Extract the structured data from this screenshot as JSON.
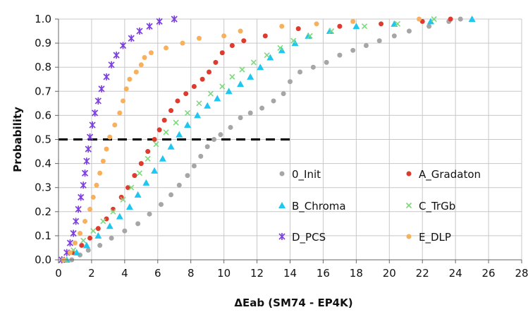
{
  "chart_data": {
    "type": "scatter",
    "title": "",
    "xlabel": "ΔEab (SM74 - EP4K)",
    "ylabel": "Probability",
    "xlim": [
      0,
      28
    ],
    "ylim": [
      0,
      1.0
    ],
    "x_ticks": [
      "0",
      "2",
      "4",
      "6",
      "8",
      "10",
      "12",
      "14",
      "16",
      "18",
      "20",
      "22",
      "24",
      "26",
      "28"
    ],
    "y_ticks": [
      "0.0",
      "0.1",
      "0.2",
      "0.3",
      "0.4",
      "0.5",
      "0.6",
      "0.7",
      "0.8",
      "0.9",
      "1.0"
    ],
    "grid": true,
    "legend_position": "lower-right",
    "reference_line": {
      "y": 0.5,
      "x_from": 0,
      "x_to": 14,
      "style": "dashed"
    },
    "series": [
      {
        "name": "0_Init",
        "color": "#a6a6a6",
        "marker": "circle",
        "points": [
          [
            0.8,
            0
          ],
          [
            1.3,
            0.02
          ],
          [
            1.8,
            0.04
          ],
          [
            2.5,
            0.06
          ],
          [
            3.2,
            0.09
          ],
          [
            4,
            0.12
          ],
          [
            4.8,
            0.15
          ],
          [
            5.5,
            0.19
          ],
          [
            6.2,
            0.23
          ],
          [
            6.8,
            0.27
          ],
          [
            7.3,
            0.31
          ],
          [
            7.8,
            0.35
          ],
          [
            8.2,
            0.39
          ],
          [
            8.6,
            0.43
          ],
          [
            9,
            0.47
          ],
          [
            9.4,
            0.5
          ],
          [
            9.8,
            0.52
          ],
          [
            10.4,
            0.55
          ],
          [
            11,
            0.59
          ],
          [
            11.6,
            0.61
          ],
          [
            12.3,
            0.63
          ],
          [
            13,
            0.66
          ],
          [
            13.6,
            0.69
          ],
          [
            14,
            0.74
          ],
          [
            14.6,
            0.78
          ],
          [
            15.4,
            0.8
          ],
          [
            16.2,
            0.82
          ],
          [
            17,
            0.85
          ],
          [
            17.8,
            0.87
          ],
          [
            18.6,
            0.89
          ],
          [
            19.4,
            0.91
          ],
          [
            20.3,
            0.93
          ],
          [
            21.2,
            0.95
          ],
          [
            22.4,
            0.97
          ],
          [
            23.6,
            0.99
          ],
          [
            24.3,
            1.0
          ]
        ]
      },
      {
        "name": "A_Gradaton",
        "color": "#e03a2e",
        "marker": "circle",
        "points": [
          [
            0.3,
            0
          ],
          [
            0.9,
            0.03
          ],
          [
            1.4,
            0.06
          ],
          [
            1.9,
            0.09
          ],
          [
            2.4,
            0.13
          ],
          [
            2.9,
            0.17
          ],
          [
            3.3,
            0.21
          ],
          [
            3.8,
            0.26
          ],
          [
            4.2,
            0.3
          ],
          [
            4.6,
            0.35
          ],
          [
            5,
            0.4
          ],
          [
            5.4,
            0.45
          ],
          [
            5.8,
            0.5
          ],
          [
            6.1,
            0.54
          ],
          [
            6.4,
            0.58
          ],
          [
            6.8,
            0.62
          ],
          [
            7.2,
            0.66
          ],
          [
            7.7,
            0.69
          ],
          [
            8.2,
            0.72
          ],
          [
            8.7,
            0.75
          ],
          [
            9.1,
            0.78
          ],
          [
            9.5,
            0.82
          ],
          [
            9.9,
            0.86
          ],
          [
            10.5,
            0.89
          ],
          [
            11.2,
            0.91
          ],
          [
            12.5,
            0.93
          ],
          [
            14.5,
            0.96
          ],
          [
            17,
            0.97
          ],
          [
            19.5,
            0.98
          ],
          [
            22,
            0.99
          ],
          [
            23.7,
            1.0
          ]
        ]
      },
      {
        "name": "B_Chroma",
        "color": "#1fc7f0",
        "marker": "triangle",
        "points": [
          [
            0.5,
            0
          ],
          [
            1.1,
            0.03
          ],
          [
            1.7,
            0.06
          ],
          [
            2.4,
            0.1
          ],
          [
            3.1,
            0.14
          ],
          [
            3.7,
            0.18
          ],
          [
            4.3,
            0.22
          ],
          [
            4.8,
            0.27
          ],
          [
            5.3,
            0.32
          ],
          [
            5.8,
            0.37
          ],
          [
            6.3,
            0.42
          ],
          [
            6.8,
            0.47
          ],
          [
            7.3,
            0.52
          ],
          [
            7.8,
            0.56
          ],
          [
            8.4,
            0.6
          ],
          [
            9,
            0.64
          ],
          [
            9.6,
            0.67
          ],
          [
            10.3,
            0.7
          ],
          [
            11,
            0.73
          ],
          [
            11.6,
            0.76
          ],
          [
            12.2,
            0.8
          ],
          [
            12.8,
            0.84
          ],
          [
            13.5,
            0.87
          ],
          [
            14.3,
            0.9
          ],
          [
            15.1,
            0.93
          ],
          [
            16.4,
            0.95
          ],
          [
            18,
            0.97
          ],
          [
            20.3,
            0.98
          ],
          [
            22.5,
            0.99
          ],
          [
            25,
            1.0
          ]
        ]
      },
      {
        "name": "C_TrGb",
        "color": "#7dd97d",
        "marker": "cross",
        "points": [
          [
            0.4,
            0
          ],
          [
            0.9,
            0.04
          ],
          [
            1.5,
            0.08
          ],
          [
            2.1,
            0.12
          ],
          [
            2.7,
            0.16
          ],
          [
            3.3,
            0.2
          ],
          [
            3.9,
            0.25
          ],
          [
            4.4,
            0.3
          ],
          [
            4.9,
            0.36
          ],
          [
            5.4,
            0.42
          ],
          [
            5.9,
            0.48
          ],
          [
            6.5,
            0.53
          ],
          [
            7.1,
            0.57
          ],
          [
            7.8,
            0.61
          ],
          [
            8.5,
            0.65
          ],
          [
            9.2,
            0.69
          ],
          [
            9.9,
            0.72
          ],
          [
            10.5,
            0.76
          ],
          [
            11.1,
            0.79
          ],
          [
            11.8,
            0.82
          ],
          [
            12.6,
            0.85
          ],
          [
            13.4,
            0.88
          ],
          [
            14.2,
            0.91
          ],
          [
            15.2,
            0.93
          ],
          [
            16.5,
            0.95
          ],
          [
            18.5,
            0.97
          ],
          [
            20.5,
            0.98
          ],
          [
            22.7,
            1.0
          ]
        ]
      },
      {
        "name": "D_PCS",
        "color": "#7d3fe0",
        "marker": "star",
        "points": [
          [
            0.2,
            0
          ],
          [
            0.5,
            0.03
          ],
          [
            0.7,
            0.07
          ],
          [
            0.9,
            0.11
          ],
          [
            1.05,
            0.16
          ],
          [
            1.2,
            0.21
          ],
          [
            1.35,
            0.26
          ],
          [
            1.5,
            0.31
          ],
          [
            1.6,
            0.36
          ],
          [
            1.7,
            0.41
          ],
          [
            1.8,
            0.46
          ],
          [
            1.9,
            0.51
          ],
          [
            2.05,
            0.56
          ],
          [
            2.2,
            0.61
          ],
          [
            2.4,
            0.66
          ],
          [
            2.6,
            0.71
          ],
          [
            2.9,
            0.76
          ],
          [
            3.2,
            0.81
          ],
          [
            3.5,
            0.85
          ],
          [
            3.9,
            0.89
          ],
          [
            4.4,
            0.92
          ],
          [
            4.9,
            0.95
          ],
          [
            5.5,
            0.97
          ],
          [
            6.1,
            0.99
          ],
          [
            7,
            1.0
          ]
        ]
      },
      {
        "name": "E_DLP",
        "color": "#f7b05c",
        "marker": "circle",
        "points": [
          [
            0.3,
            0
          ],
          [
            0.7,
            0.03
          ],
          [
            1,
            0.07
          ],
          [
            1.3,
            0.11
          ],
          [
            1.6,
            0.16
          ],
          [
            1.9,
            0.21
          ],
          [
            2.1,
            0.26
          ],
          [
            2.3,
            0.31
          ],
          [
            2.5,
            0.36
          ],
          [
            2.7,
            0.41
          ],
          [
            2.9,
            0.46
          ],
          [
            3.1,
            0.51
          ],
          [
            3.4,
            0.56
          ],
          [
            3.7,
            0.61
          ],
          [
            3.9,
            0.66
          ],
          [
            4.1,
            0.71
          ],
          [
            4.3,
            0.75
          ],
          [
            4.7,
            0.78
          ],
          [
            5,
            0.81
          ],
          [
            5.2,
            0.84
          ],
          [
            5.6,
            0.86
          ],
          [
            6.5,
            0.88
          ],
          [
            7.5,
            0.9
          ],
          [
            8.5,
            0.92
          ],
          [
            10,
            0.93
          ],
          [
            11,
            0.95
          ],
          [
            13.5,
            0.97
          ],
          [
            15.6,
            0.98
          ],
          [
            17.8,
            0.99
          ],
          [
            21.8,
            1.0
          ]
        ]
      }
    ]
  }
}
